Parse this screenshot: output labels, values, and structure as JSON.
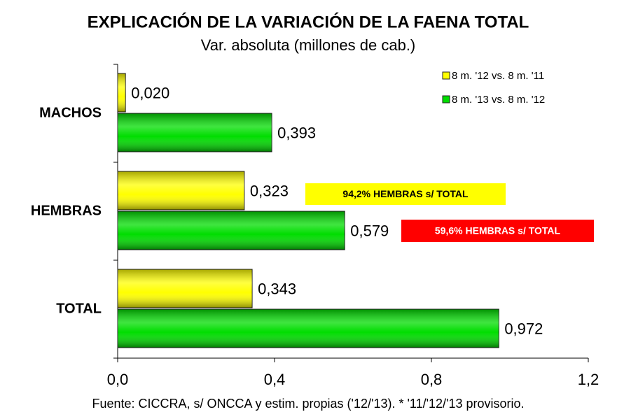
{
  "chart_data": {
    "type": "bar",
    "orientation": "horizontal",
    "title": "EXPLICACIÓN DE LA VARIACIÓN DE LA FAENA TOTAL",
    "subtitle": "Var. absoluta (millones de cab.)",
    "categories": [
      "MACHOS",
      "HEMBRAS",
      "TOTAL"
    ],
    "series": [
      {
        "name": "8 m. '12 vs. 8 m. '11",
        "color": "#ffff00",
        "values": [
          0.02,
          0.323,
          0.343
        ],
        "value_labels": [
          "0,020",
          "0,323",
          "0,343"
        ]
      },
      {
        "name": "8 m. '13 vs. 8 m. '12",
        "color": "#00dd00",
        "values": [
          0.393,
          0.579,
          0.972
        ],
        "value_labels": [
          "0,393",
          "0,579",
          "0,972"
        ]
      }
    ],
    "xlim": [
      0,
      1.2
    ],
    "xticks": [
      {
        "value": 0,
        "label": "0,0"
      },
      {
        "value": 0.4,
        "label": "0,4"
      },
      {
        "value": 0.8,
        "label": "0,8"
      },
      {
        "value": 1.2,
        "label": "1,2"
      }
    ],
    "legend": "upper right",
    "annotations": [
      {
        "text": "94,2% HEMBRAS s/ TOTAL",
        "color": "#ffff00",
        "text_color": "#000000"
      },
      {
        "text": "59,6% HEMBRAS s/ TOTAL",
        "color": "#ff0000",
        "text_color": "#ffffff"
      }
    ],
    "source": "Fuente: CICCRA, s/ ONCCA y estim. propias ('12/'13). * '11/'12/'13 provisorio."
  }
}
